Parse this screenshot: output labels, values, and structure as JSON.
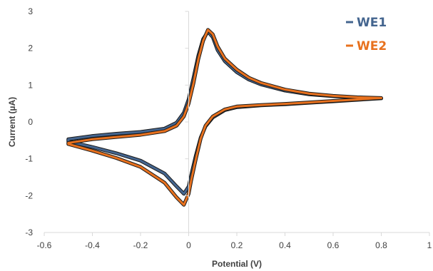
{
  "chart_data": {
    "type": "line",
    "title": "",
    "xlabel": "Potential (V)",
    "ylabel": "Current (µA)",
    "xlim": [
      -0.6,
      1
    ],
    "ylim": [
      -3,
      3
    ],
    "x_ticks": [
      -0.6,
      -0.4,
      -0.2,
      0,
      0.2,
      0.4,
      0.6,
      0.8,
      1
    ],
    "x_tick_labels": [
      "-0.6",
      "-0.4",
      "-0.2",
      "0",
      "0.2",
      "0.4",
      "0.6",
      "0.8",
      "1"
    ],
    "y_ticks": [
      3,
      2,
      1,
      0,
      -1,
      -2,
      -3
    ],
    "y_tick_labels": [
      "3",
      "2",
      "1",
      "0",
      "-1",
      "-2",
      "-3"
    ],
    "grid": false,
    "legend_position": "top-right",
    "series": [
      {
        "name": "WE1",
        "color": "#44658f",
        "x": [
          -0.5,
          -0.4,
          -0.3,
          -0.2,
          -0.1,
          -0.05,
          -0.02,
          0.0,
          0.02,
          0.04,
          0.06,
          0.08,
          0.1,
          0.12,
          0.15,
          0.2,
          0.25,
          0.3,
          0.4,
          0.5,
          0.6,
          0.7,
          0.8,
          0.7,
          0.6,
          0.5,
          0.4,
          0.3,
          0.2,
          0.15,
          0.1,
          0.07,
          0.05,
          0.03,
          0.01,
          0.0,
          -0.02,
          -0.05,
          -0.1,
          -0.2,
          -0.3,
          -0.4,
          -0.5
        ],
        "y": [
          -0.47,
          -0.38,
          -0.32,
          -0.27,
          -0.18,
          -0.02,
          0.25,
          0.62,
          1.2,
          1.8,
          2.25,
          2.45,
          2.3,
          1.95,
          1.65,
          1.35,
          1.15,
          1.02,
          0.85,
          0.75,
          0.7,
          0.66,
          0.64,
          0.6,
          0.56,
          0.52,
          0.48,
          0.45,
          0.4,
          0.32,
          0.12,
          -0.12,
          -0.42,
          -0.9,
          -1.45,
          -1.75,
          -1.95,
          -1.75,
          -1.4,
          -1.05,
          -0.85,
          -0.68,
          -0.53
        ]
      },
      {
        "name": "WE2",
        "color": "#e8711e",
        "x": [
          -0.5,
          -0.4,
          -0.3,
          -0.2,
          -0.1,
          -0.05,
          -0.02,
          0.0,
          0.02,
          0.04,
          0.06,
          0.08,
          0.1,
          0.12,
          0.15,
          0.2,
          0.25,
          0.3,
          0.4,
          0.5,
          0.6,
          0.7,
          0.8,
          0.7,
          0.6,
          0.5,
          0.4,
          0.3,
          0.2,
          0.15,
          0.1,
          0.07,
          0.05,
          0.03,
          0.01,
          0.0,
          -0.02,
          -0.05,
          -0.1,
          -0.2,
          -0.3,
          -0.4,
          -0.5
        ],
        "y": [
          -0.57,
          -0.47,
          -0.41,
          -0.35,
          -0.25,
          -0.1,
          0.15,
          0.5,
          1.05,
          1.7,
          2.2,
          2.5,
          2.38,
          2.05,
          1.72,
          1.42,
          1.2,
          1.06,
          0.88,
          0.77,
          0.71,
          0.67,
          0.65,
          0.61,
          0.57,
          0.53,
          0.49,
          0.46,
          0.42,
          0.34,
          0.15,
          -0.1,
          -0.45,
          -1.0,
          -1.6,
          -1.95,
          -2.25,
          -2.05,
          -1.65,
          -1.22,
          -0.98,
          -0.78,
          -0.6
        ]
      }
    ]
  }
}
